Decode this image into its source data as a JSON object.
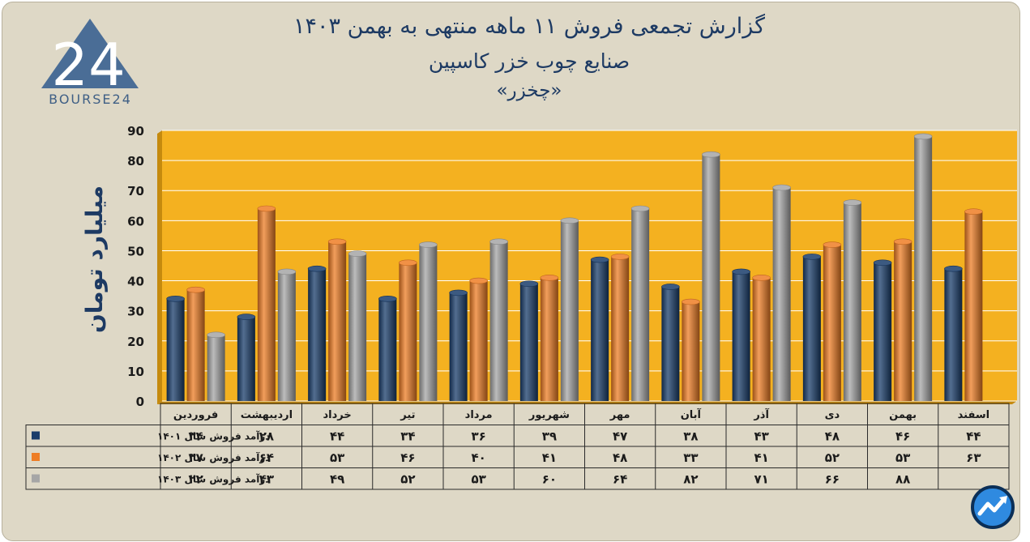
{
  "title_lines": [
    "گزارش تجمعی فروش ۱۱ ماهه منتهی به بهمن ۱۴۰۳",
    "صنایع چوب خزر کاسپین",
    "«چخزر»"
  ],
  "logo": {
    "digits": "24",
    "text": "BOURSE24"
  },
  "colors": {
    "background": "#ded8c6",
    "plot": "#f4b120",
    "series": [
      "#1a3d6b",
      "#ee7d25",
      "#a6a6a6"
    ],
    "title": "#1d3a63"
  },
  "chart_data": {
    "type": "bar",
    "ylabel": "میلیارد تومان",
    "ylim": [
      0,
      90
    ],
    "yticks": [
      0,
      10,
      20,
      30,
      40,
      50,
      60,
      70,
      80,
      90
    ],
    "ytick_labels": [
      "0",
      "10",
      "20",
      "30",
      "40",
      "50",
      "60",
      "70",
      "80",
      "90"
    ],
    "grid": true,
    "legend": "table-left",
    "categories": [
      "فروردین",
      "اردیبهشت",
      "خرداد",
      "تیر",
      "مرداد",
      "شهریور",
      "مهر",
      "آبان",
      "آذر",
      "دی",
      "بهمن",
      "اسفند"
    ],
    "series": [
      {
        "name": "درآمد فروش سال ۱۴۰۱",
        "values": [
          34,
          28,
          44,
          34,
          36,
          39,
          47,
          38,
          43,
          48,
          46,
          44
        ],
        "labels": [
          "۳۴",
          "۲۸",
          "۴۴",
          "۳۴",
          "۳۶",
          "۳۹",
          "۴۷",
          "۳۸",
          "۴۳",
          "۴۸",
          "۴۶",
          "۴۴"
        ]
      },
      {
        "name": "درآمد فروش سال ۱۴۰۲",
        "values": [
          37,
          64,
          53,
          46,
          40,
          41,
          48,
          33,
          41,
          52,
          53,
          63
        ],
        "labels": [
          "۳۷",
          "۶۴",
          "۵۳",
          "۴۶",
          "۴۰",
          "۴۱",
          "۴۸",
          "۳۳",
          "۴۱",
          "۵۲",
          "۵۳",
          "۶۳"
        ]
      },
      {
        "name": "درآمد فروش سال ۱۴۰۳",
        "values": [
          22,
          43,
          49,
          52,
          53,
          60,
          64,
          82,
          71,
          66,
          88,
          null
        ],
        "labels": [
          "۲۲",
          "۴۳",
          "۴۹",
          "۵۲",
          "۵۳",
          "۶۰",
          "۶۴",
          "۸۲",
          "۷۱",
          "۶۶",
          "۸۸",
          ""
        ]
      }
    ]
  }
}
